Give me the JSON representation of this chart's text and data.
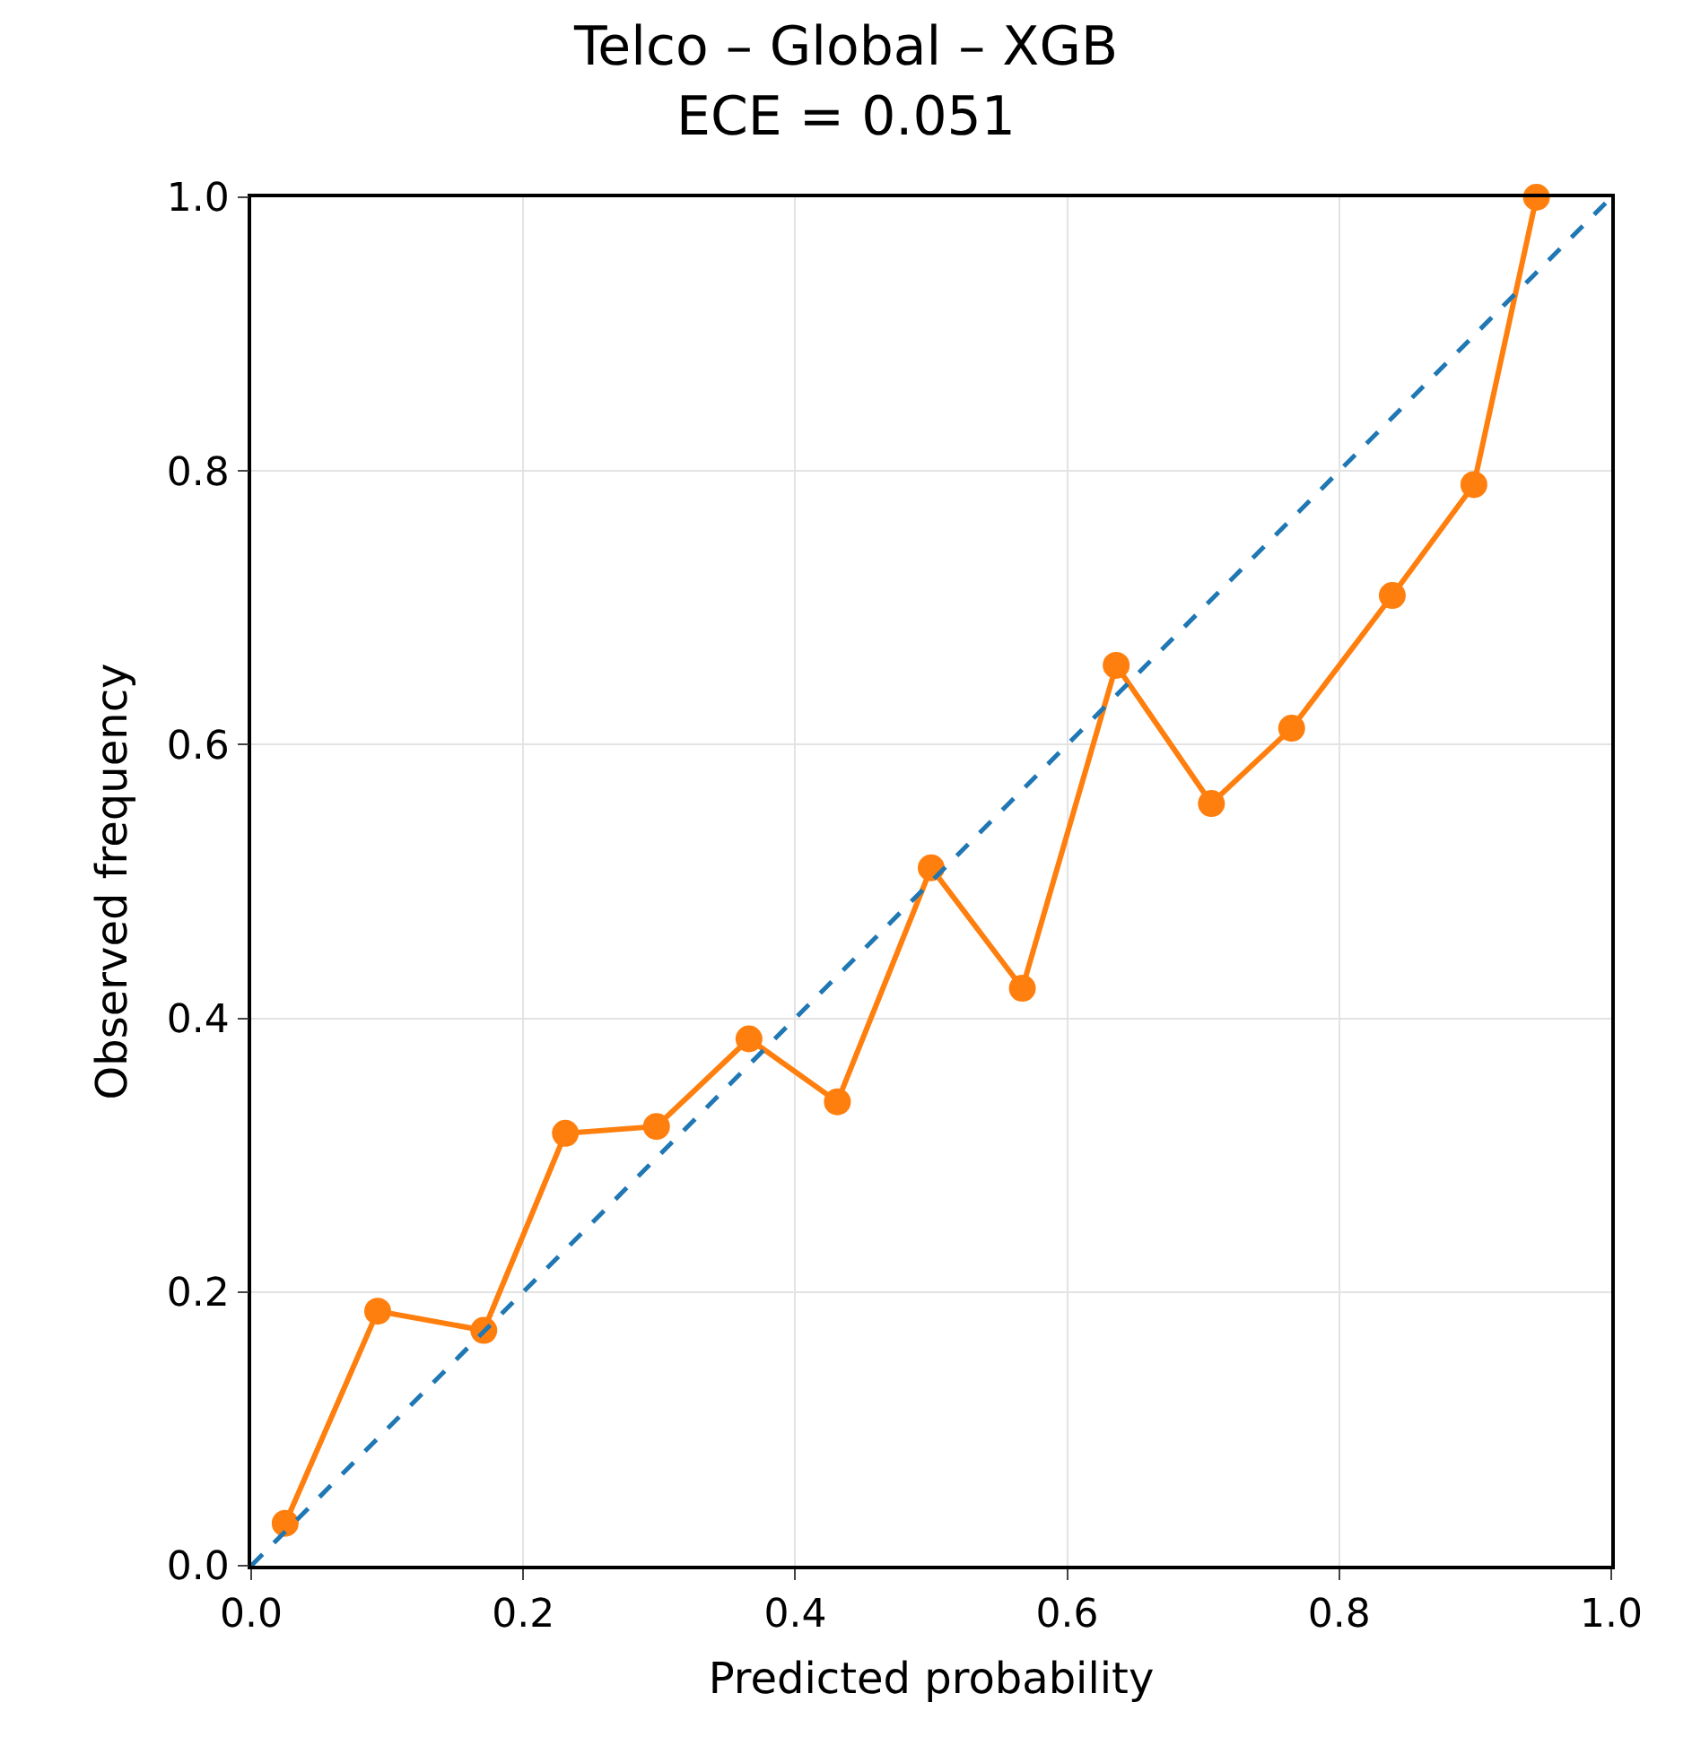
{
  "chart_data": {
    "type": "line",
    "title": "Telco – Global – XGB\nECE = 0.051",
    "xlabel": "Predicted probability",
    "ylabel": "Observed frequency",
    "x": [
      0.025,
      0.093,
      0.171,
      0.231,
      0.298,
      0.366,
      0.431,
      0.5,
      0.567,
      0.636,
      0.706,
      0.765,
      0.839,
      0.899,
      0.945
    ],
    "series": [
      {
        "color": "#ff7f0e",
        "marker": "circle",
        "line_style": "solid",
        "values": [
          0.031,
          0.186,
          0.172,
          0.316,
          0.321,
          0.385,
          0.339,
          0.51,
          0.422,
          0.658,
          0.557,
          0.612,
          0.709,
          0.79,
          1.0
        ]
      },
      {
        "type": "line",
        "x": [
          0,
          1
        ],
        "color": "#1f77b4",
        "marker": "none",
        "line_style": "dashed",
        "values": [
          0,
          1
        ]
      }
    ],
    "xlim": [
      0,
      1
    ],
    "ylim": [
      0,
      1
    ],
    "xticks": [
      {
        "value": 0,
        "label": "0.0"
      },
      0.2,
      0.4,
      0.6,
      0.8,
      {
        "value": 1,
        "label": "1.0"
      }
    ],
    "yticks": [
      {
        "value": 0,
        "label": "0.0"
      },
      0.2,
      0.4,
      0.6,
      0.8,
      {
        "value": 1,
        "label": "1.0"
      }
    ],
    "grid": true
  }
}
